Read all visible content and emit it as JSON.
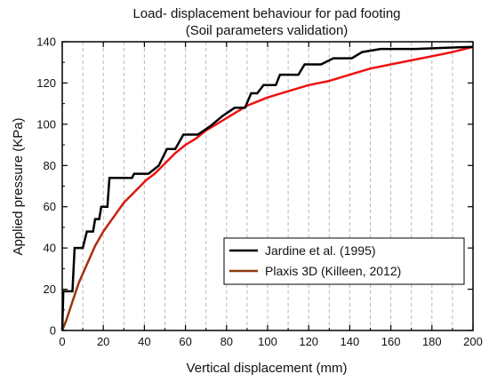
{
  "chart_data": {
    "type": "line",
    "title": "Load- displacement behaviour for pad footing",
    "subtitle": "(Soil parameters validation)",
    "xlabel": "Vertical displacement (mm)",
    "ylabel": "Applied pressure (KPa)",
    "xlim": [
      0,
      200
    ],
    "ylim": [
      0,
      140
    ],
    "xticks": [
      0,
      20,
      40,
      60,
      80,
      100,
      120,
      140,
      160,
      180,
      200
    ],
    "yticks": [
      0,
      20,
      40,
      60,
      80,
      100,
      120,
      140
    ],
    "grid": "vertical dashed",
    "legend_position": "lower-right",
    "series": [
      {
        "name": "Jardine et al. (1995)",
        "color": "#000000",
        "points": [
          [
            0,
            0
          ],
          [
            0.5,
            19
          ],
          [
            5,
            19
          ],
          [
            6,
            40
          ],
          [
            10,
            40
          ],
          [
            12,
            48
          ],
          [
            15,
            48
          ],
          [
            16,
            54
          ],
          [
            18,
            54
          ],
          [
            19,
            60
          ],
          [
            22,
            60
          ],
          [
            23,
            74
          ],
          [
            34,
            74
          ],
          [
            35,
            76
          ],
          [
            42,
            76
          ],
          [
            47,
            80
          ],
          [
            51,
            88
          ],
          [
            55,
            88
          ],
          [
            59,
            95
          ],
          [
            66,
            95
          ],
          [
            72,
            99
          ],
          [
            78,
            104
          ],
          [
            84,
            108
          ],
          [
            89,
            108
          ],
          [
            92,
            115
          ],
          [
            95,
            115
          ],
          [
            98,
            119
          ],
          [
            104,
            119
          ],
          [
            106,
            124
          ],
          [
            115,
            124
          ],
          [
            118,
            129
          ],
          [
            126,
            129
          ],
          [
            132,
            132
          ],
          [
            141,
            132
          ],
          [
            146,
            135
          ],
          [
            155,
            136.5
          ],
          [
            172,
            136.5
          ],
          [
            190,
            137.2
          ],
          [
            200,
            137.5
          ]
        ]
      },
      {
        "name": "Plaxis 3D (Killeen, 2012)",
        "color": "#8B3A0F",
        "color_upper": "#EE1111",
        "points": [
          [
            0,
            0
          ],
          [
            2,
            5
          ],
          [
            5,
            14
          ],
          [
            8,
            23
          ],
          [
            12,
            32
          ],
          [
            16,
            41
          ],
          [
            20,
            48
          ],
          [
            25,
            55
          ],
          [
            30,
            62
          ],
          [
            36,
            68
          ],
          [
            41,
            73
          ],
          [
            45,
            76
          ],
          [
            50,
            81
          ],
          [
            55,
            86
          ],
          [
            60,
            90
          ],
          [
            65,
            93
          ],
          [
            70,
            97
          ],
          [
            75,
            100
          ],
          [
            80,
            103
          ],
          [
            85,
            106
          ],
          [
            90,
            109
          ],
          [
            95,
            111
          ],
          [
            100,
            113
          ],
          [
            110,
            116
          ],
          [
            120,
            119
          ],
          [
            130,
            121
          ],
          [
            140,
            124
          ],
          [
            150,
            127
          ],
          [
            160,
            129
          ],
          [
            170,
            131
          ],
          [
            180,
            133
          ],
          [
            190,
            135
          ],
          [
            200,
            137.5
          ]
        ]
      }
    ]
  }
}
